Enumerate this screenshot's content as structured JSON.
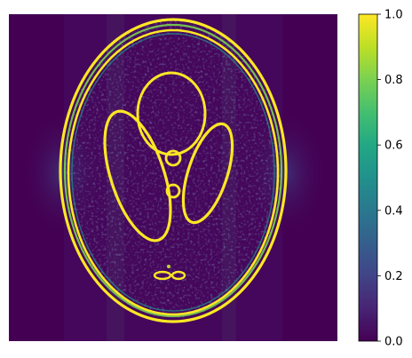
{
  "chart_data": {
    "type": "heatmap",
    "title": "",
    "xlabel": "",
    "ylabel": "",
    "axes_visible": false,
    "colormap": "viridis",
    "colorbar": {
      "vmin": 0.0,
      "vmax": 1.0,
      "ticks": [
        0.0,
        0.2,
        0.4,
        0.6,
        0.8,
        1.0
      ],
      "tick_labels": [
        "0.0",
        "0.2",
        "0.4",
        "0.6",
        "0.8",
        "1.0"
      ],
      "placement": "right"
    },
    "image_content": "edge-magnitude map of a Shepp-Logan-style phantom: bright outer double ellipse, two tilted inner ellipses, an upper ellipse, two small central circles and a small cluster near the bottom, on a dark background with faint noisy texture",
    "colors": {
      "background": "#440154",
      "low": "#3b528b",
      "mid": "#21918c",
      "high": "#5ec962",
      "max": "#fde725"
    }
  }
}
